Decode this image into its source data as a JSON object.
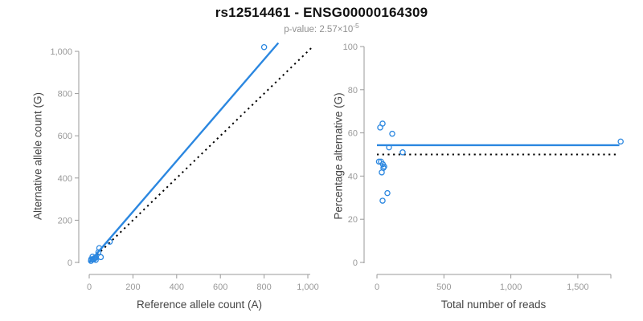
{
  "header": {
    "title": "rs12514461 - ENSG00000164309",
    "pvalue_label": "p-value: 2.57×10",
    "pvalue_exponent": "-5"
  },
  "colors": {
    "accent_blue": "#2b87e0",
    "dotted_line": "#000000",
    "axis_line": "#999999",
    "tick_label": "#999999",
    "axis_title": "#444444",
    "title": "#111111",
    "subtitle": "#909090"
  },
  "chart_data": [
    {
      "type": "scatter",
      "panel": "left",
      "xlabel": "Reference allele count (A)",
      "ylabel": "Alternative allele count (G)",
      "xlim": [
        0,
        1000
      ],
      "ylim": [
        0,
        1000
      ],
      "xticks": [
        0,
        200,
        400,
        600,
        800,
        1000
      ],
      "yticks": [
        0,
        200,
        400,
        600,
        800,
        1000
      ],
      "grid": false,
      "legend": "none",
      "marker": "open-circle",
      "points": [
        [
          8,
          7
        ],
        [
          9,
          15
        ],
        [
          15,
          27
        ],
        [
          16,
          14
        ],
        [
          21,
          15
        ],
        [
          24,
          20
        ],
        [
          27,
          21
        ],
        [
          30,
          24
        ],
        [
          30,
          12
        ],
        [
          42,
          48
        ],
        [
          46,
          68
        ],
        [
          53,
          25
        ],
        [
          94,
          98
        ],
        [
          800,
          1020
        ]
      ],
      "lines": [
        {
          "name": "fit-line",
          "style": "solid",
          "color_key": "accent_blue",
          "from": [
            0,
            0
          ],
          "to": [
            865,
            1040
          ]
        },
        {
          "name": "identity-line",
          "style": "dotted",
          "color_key": "dotted_line",
          "from": [
            0,
            0
          ],
          "to": [
            1015,
            1015
          ]
        }
      ]
    },
    {
      "type": "scatter",
      "panel": "right",
      "xlabel": "Total number of reads",
      "ylabel": "Percentage alternative (G)",
      "xlim": [
        0,
        1750
      ],
      "ylim": [
        0,
        100
      ],
      "xticks": [
        0,
        500,
        1000,
        1500
      ],
      "yticks": [
        0,
        20,
        40,
        60,
        80,
        100
      ],
      "grid": false,
      "legend": "none",
      "marker": "open-circle",
      "points": [
        [
          15,
          46.7
        ],
        [
          24,
          62.5
        ],
        [
          42,
          64.3
        ],
        [
          30,
          46.7
        ],
        [
          36,
          41.7
        ],
        [
          44,
          45.5
        ],
        [
          48,
          43.8
        ],
        [
          54,
          44.4
        ],
        [
          42,
          28.6
        ],
        [
          90,
          53.3
        ],
        [
          114,
          59.6
        ],
        [
          78,
          32.1
        ],
        [
          192,
          51.0
        ],
        [
          1820,
          56.0
        ]
      ],
      "lines": [
        {
          "name": "mean-line",
          "style": "solid",
          "color_key": "accent_blue",
          "from": [
            0,
            54.3
          ],
          "to": [
            1810,
            54.3
          ]
        },
        {
          "name": "fifty-percent-line",
          "style": "dotted",
          "color_key": "dotted_line",
          "from": [
            0,
            50
          ],
          "to": [
            1790,
            50
          ]
        }
      ]
    }
  ]
}
